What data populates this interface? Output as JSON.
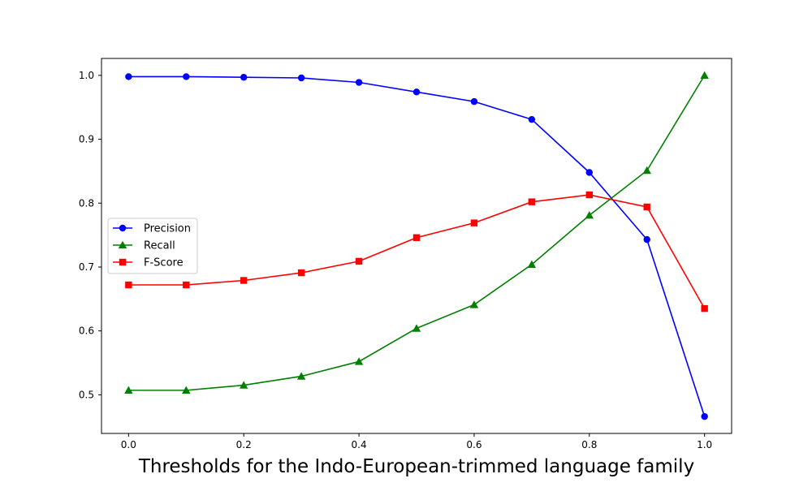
{
  "chart_data": {
    "type": "line",
    "title": "",
    "xlabel": "Thresholds for the Indo-European-trimmed language family",
    "ylabel": "",
    "x": [
      0.0,
      0.1,
      0.2,
      0.3,
      0.4,
      0.5,
      0.6,
      0.7,
      0.8,
      0.9,
      1.0
    ],
    "xlim": [
      -0.047,
      1.047
    ],
    "ylim": [
      0.4395,
      1.0265
    ],
    "xticks": [
      0.0,
      0.2,
      0.4,
      0.6,
      0.8,
      1.0
    ],
    "xtick_labels": [
      "0.0",
      "0.2",
      "0.4",
      "0.6",
      "0.8",
      "1.0"
    ],
    "yticks": [
      0.5,
      0.6,
      0.7,
      0.8,
      0.9,
      1.0
    ],
    "ytick_labels": [
      "0.5",
      "0.6",
      "0.7",
      "0.8",
      "0.9",
      "1.0"
    ],
    "grid": false,
    "legend_position": "center-left",
    "series": [
      {
        "name": "Precision",
        "color": "#0000ff",
        "marker": "circle",
        "values": [
          0.998,
          0.998,
          0.997,
          0.996,
          0.989,
          0.974,
          0.959,
          0.931,
          0.848,
          0.743,
          0.466
        ]
      },
      {
        "name": "Recall",
        "color": "#008000",
        "marker": "triangle",
        "values": [
          0.507,
          0.507,
          0.515,
          0.529,
          0.552,
          0.604,
          0.641,
          0.704,
          0.781,
          0.851,
          1.0
        ]
      },
      {
        "name": "F-Score",
        "color": "#ff0000",
        "marker": "square",
        "values": [
          0.672,
          0.672,
          0.679,
          0.691,
          0.709,
          0.746,
          0.769,
          0.802,
          0.813,
          0.794,
          0.635
        ]
      }
    ]
  }
}
